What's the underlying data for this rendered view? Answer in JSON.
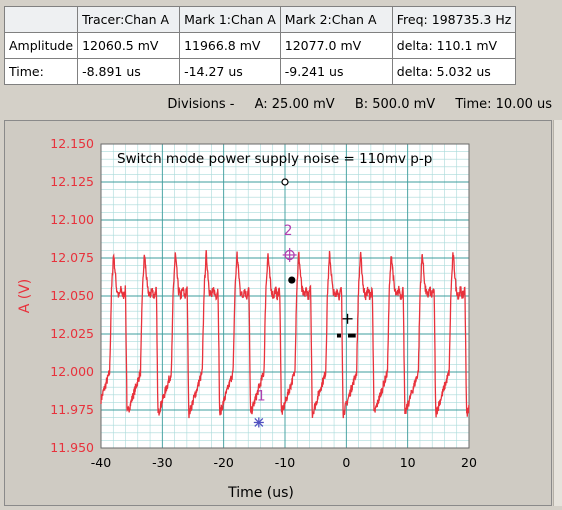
{
  "readout": {
    "headers": [
      "",
      "Tracer:Chan A",
      "Mark 1:Chan A",
      "Mark 2:Chan A",
      "Freq:  198735.3 Hz"
    ],
    "rows": [
      [
        "Amplitude",
        "12060.5 mV",
        "11966.8 mV",
        "12077.0 mV",
        "delta:  110.1 mV"
      ],
      [
        "Time:",
        "-8.891 us",
        "-14.27 us",
        "-9.241 us",
        "delta:  5.032 us"
      ]
    ]
  },
  "divisions": {
    "label": "Divisions -",
    "a": "A: 25.00 mV",
    "b": "B: 500.0 mV",
    "time": "Time: 10.00 us"
  },
  "colors": {
    "trace": "#e8323c",
    "axis_text": "#e8323c",
    "grid_major": "#3d9c9c",
    "grid_minor": "#a9dada",
    "plot_bg": "#ffffff",
    "marker": "#b040b0",
    "marker_cross": "#5050c0"
  },
  "chart_data": {
    "type": "line",
    "annotation": "Switch mode power supply noise = 110mv p-p",
    "xlabel": "Time (us)",
    "ylabel": "A (V)",
    "xlim": [
      -40,
      20
    ],
    "ylim": [
      11.95,
      12.15
    ],
    "xticks": [
      -40,
      -30,
      -20,
      -10,
      0,
      10,
      20
    ],
    "yticks": [
      11.95,
      11.975,
      12.0,
      12.025,
      12.05,
      12.075,
      12.1,
      12.125,
      12.15
    ],
    "ytick_labels": [
      "11.950",
      "11.975",
      "12.000",
      "12.025",
      "12.050",
      "12.075",
      "12.100",
      "12.125",
      "12.150"
    ],
    "grid": true,
    "waveform": {
      "period": 5.032,
      "first_spike": -38.3,
      "base_level": 12.052,
      "spike_level": 12.078,
      "trough_level": 11.972,
      "ramp_end_level": 12.0
    },
    "markers": [
      {
        "label": "1",
        "x": -14.27,
        "y": 11.9668,
        "symbol": "asterisk"
      },
      {
        "label": "2",
        "x": -9.241,
        "y": 12.077,
        "symbol": "circle-cross"
      }
    ],
    "tracer": {
      "x": -8.891,
      "y": 12.0605
    },
    "cursor_cross": {
      "x": 0.2,
      "y": 12.035
    },
    "cursor_dots": [
      {
        "x": -1.2,
        "y": 12.024
      },
      {
        "x": 0.6,
        "y": 12.024
      },
      {
        "x": 1.2,
        "y": 12.024
      }
    ],
    "open_circle": {
      "x": -10,
      "y": 12.125
    }
  }
}
